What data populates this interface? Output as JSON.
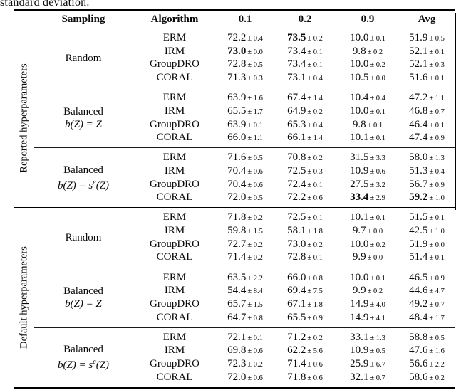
{
  "page": {
    "caption_fragment": "standard deviation.",
    "text_color": "#0a0a0a",
    "rule_color": "#000000"
  },
  "table": {
    "columns": [
      "Sampling",
      "Algorithm",
      "0.1",
      "0.2",
      "0.9",
      "Avg"
    ],
    "sections": [
      {
        "label": "Reported hyperparameters",
        "blocks": [
          {
            "sampling": {
              "line1": "Random",
              "line2": null
            },
            "rows": [
              {
                "algorithm": "ERM",
                "values": [
                  {
                    "v": "72.2",
                    "se": "0.4",
                    "bold": false
                  },
                  {
                    "v": "73.5",
                    "se": "0.2",
                    "bold": true
                  },
                  {
                    "v": "10.0",
                    "se": "0.1",
                    "bold": false
                  },
                  {
                    "v": "51.9",
                    "se": "0.5",
                    "bold": false
                  }
                ]
              },
              {
                "algorithm": "IRM",
                "values": [
                  {
                    "v": "73.0",
                    "se": "0.0",
                    "bold": true
                  },
                  {
                    "v": "73.4",
                    "se": "0.1",
                    "bold": false
                  },
                  {
                    "v": "9.8",
                    "se": "0.2",
                    "bold": false
                  },
                  {
                    "v": "52.1",
                    "se": "0.1",
                    "bold": false
                  }
                ]
              },
              {
                "algorithm": "GroupDRO",
                "values": [
                  {
                    "v": "72.8",
                    "se": "0.5",
                    "bold": false
                  },
                  {
                    "v": "73.4",
                    "se": "0.1",
                    "bold": false
                  },
                  {
                    "v": "10.0",
                    "se": "0.2",
                    "bold": false
                  },
                  {
                    "v": "52.1",
                    "se": "0.3",
                    "bold": false
                  }
                ]
              },
              {
                "algorithm": "CORAL",
                "values": [
                  {
                    "v": "71.3",
                    "se": "0.3",
                    "bold": false
                  },
                  {
                    "v": "73.1",
                    "se": "0.4",
                    "bold": false
                  },
                  {
                    "v": "10.5",
                    "se": "0.0",
                    "bold": false
                  },
                  {
                    "v": "51.6",
                    "se": "0.1",
                    "bold": false
                  }
                ]
              }
            ]
          },
          {
            "sampling": {
              "line1": "Balanced",
              "line2": {
                "pre": "b(Z) = Z",
                "sup": "",
                "post": ""
              }
            },
            "rows": [
              {
                "algorithm": "ERM",
                "values": [
                  {
                    "v": "63.9",
                    "se": "1.6",
                    "bold": false
                  },
                  {
                    "v": "67.4",
                    "se": "1.4",
                    "bold": false
                  },
                  {
                    "v": "10.4",
                    "se": "0.4",
                    "bold": false
                  },
                  {
                    "v": "47.2",
                    "se": "1.1",
                    "bold": false
                  }
                ]
              },
              {
                "algorithm": "IRM",
                "values": [
                  {
                    "v": "65.5",
                    "se": "1.7",
                    "bold": false
                  },
                  {
                    "v": "64.9",
                    "se": "0.2",
                    "bold": false
                  },
                  {
                    "v": "10.0",
                    "se": "0.1",
                    "bold": false
                  },
                  {
                    "v": "46.8",
                    "se": "0.7",
                    "bold": false
                  }
                ]
              },
              {
                "algorithm": "GroupDRO",
                "values": [
                  {
                    "v": "63.9",
                    "se": "0.1",
                    "bold": false
                  },
                  {
                    "v": "65.3",
                    "se": "0.4",
                    "bold": false
                  },
                  {
                    "v": "9.8",
                    "se": "0.1",
                    "bold": false
                  },
                  {
                    "v": "46.4",
                    "se": "0.1",
                    "bold": false
                  }
                ]
              },
              {
                "algorithm": "CORAL",
                "values": [
                  {
                    "v": "66.0",
                    "se": "1.1",
                    "bold": false
                  },
                  {
                    "v": "66.1",
                    "se": "1.4",
                    "bold": false
                  },
                  {
                    "v": "10.1",
                    "se": "0.1",
                    "bold": false
                  },
                  {
                    "v": "47.4",
                    "se": "0.9",
                    "bold": false
                  }
                ]
              }
            ]
          },
          {
            "sampling": {
              "line1": "Balanced",
              "line2": {
                "pre": "b(Z) = s",
                "sup": "e",
                "post": "(Z)"
              }
            },
            "rows": [
              {
                "algorithm": "ERM",
                "values": [
                  {
                    "v": "71.6",
                    "se": "0.5",
                    "bold": false
                  },
                  {
                    "v": "70.8",
                    "se": "0.2",
                    "bold": false
                  },
                  {
                    "v": "31.5",
                    "se": "3.3",
                    "bold": false
                  },
                  {
                    "v": "58.0",
                    "se": "1.3",
                    "bold": false
                  }
                ]
              },
              {
                "algorithm": "IRM",
                "values": [
                  {
                    "v": "70.4",
                    "se": "0.6",
                    "bold": false
                  },
                  {
                    "v": "72.5",
                    "se": "0.3",
                    "bold": false
                  },
                  {
                    "v": "10.9",
                    "se": "0.6",
                    "bold": false
                  },
                  {
                    "v": "51.3",
                    "se": "0.4",
                    "bold": false
                  }
                ]
              },
              {
                "algorithm": "GroupDRO",
                "values": [
                  {
                    "v": "70.4",
                    "se": "0.6",
                    "bold": false
                  },
                  {
                    "v": "72.4",
                    "se": "0.1",
                    "bold": false
                  },
                  {
                    "v": "27.5",
                    "se": "3.2",
                    "bold": false
                  },
                  {
                    "v": "56.7",
                    "se": "0.9",
                    "bold": false
                  }
                ]
              },
              {
                "algorithm": "CORAL",
                "values": [
                  {
                    "v": "72.0",
                    "se": "0.5",
                    "bold": false
                  },
                  {
                    "v": "72.2",
                    "se": "0.6",
                    "bold": false
                  },
                  {
                    "v": "33.4",
                    "se": "2.9",
                    "bold": true
                  },
                  {
                    "v": "59.2",
                    "se": "1.0",
                    "bold": true
                  }
                ]
              }
            ]
          }
        ]
      },
      {
        "label": "Default hyperparameters",
        "blocks": [
          {
            "sampling": {
              "line1": "Random",
              "line2": null
            },
            "rows": [
              {
                "algorithm": "ERM",
                "values": [
                  {
                    "v": "71.8",
                    "se": "0.2",
                    "bold": false
                  },
                  {
                    "v": "72.5",
                    "se": "0.1",
                    "bold": false
                  },
                  {
                    "v": "10.1",
                    "se": "0.1",
                    "bold": false
                  },
                  {
                    "v": "51.5",
                    "se": "0.1",
                    "bold": false
                  }
                ]
              },
              {
                "algorithm": "IRM",
                "values": [
                  {
                    "v": "59.8",
                    "se": "1.5",
                    "bold": false
                  },
                  {
                    "v": "58.1",
                    "se": "1.8",
                    "bold": false
                  },
                  {
                    "v": "9.7",
                    "se": "0.0",
                    "bold": false
                  },
                  {
                    "v": "42.5",
                    "se": "1.0",
                    "bold": false
                  }
                ]
              },
              {
                "algorithm": "GroupDRO",
                "values": [
                  {
                    "v": "72.7",
                    "se": "0.2",
                    "bold": false
                  },
                  {
                    "v": "73.0",
                    "se": "0.2",
                    "bold": false
                  },
                  {
                    "v": "10.0",
                    "se": "0.2",
                    "bold": false
                  },
                  {
                    "v": "51.9",
                    "se": "0.0",
                    "bold": false
                  }
                ]
              },
              {
                "algorithm": "CORAL",
                "values": [
                  {
                    "v": "71.4",
                    "se": "0.2",
                    "bold": false
                  },
                  {
                    "v": "72.8",
                    "se": "0.1",
                    "bold": false
                  },
                  {
                    "v": "9.9",
                    "se": "0.0",
                    "bold": false
                  },
                  {
                    "v": "51.4",
                    "se": "0.1",
                    "bold": false
                  }
                ]
              }
            ]
          },
          {
            "sampling": {
              "line1": "Balanced",
              "line2": {
                "pre": "b(Z) = Z",
                "sup": "",
                "post": ""
              }
            },
            "rows": [
              {
                "algorithm": "ERM",
                "values": [
                  {
                    "v": "63.5",
                    "se": "2.2",
                    "bold": false
                  },
                  {
                    "v": "66.0",
                    "se": "0.8",
                    "bold": false
                  },
                  {
                    "v": "10.0",
                    "se": "0.1",
                    "bold": false
                  },
                  {
                    "v": "46.5",
                    "se": "0.9",
                    "bold": false
                  }
                ]
              },
              {
                "algorithm": "IRM",
                "values": [
                  {
                    "v": "54.4",
                    "se": "8.4",
                    "bold": false
                  },
                  {
                    "v": "69.4",
                    "se": "7.5",
                    "bold": false
                  },
                  {
                    "v": "9.9",
                    "se": "0.2",
                    "bold": false
                  },
                  {
                    "v": "44.6",
                    "se": "4.7",
                    "bold": false
                  }
                ]
              },
              {
                "algorithm": "GroupDRO",
                "values": [
                  {
                    "v": "65.7",
                    "se": "1.5",
                    "bold": false
                  },
                  {
                    "v": "67.1",
                    "se": "1.8",
                    "bold": false
                  },
                  {
                    "v": "14.9",
                    "se": "4.0",
                    "bold": false
                  },
                  {
                    "v": "49.2",
                    "se": "0.7",
                    "bold": false
                  }
                ]
              },
              {
                "algorithm": "CORAL",
                "values": [
                  {
                    "v": "64.7",
                    "se": "0.8",
                    "bold": false
                  },
                  {
                    "v": "65.5",
                    "se": "0.9",
                    "bold": false
                  },
                  {
                    "v": "14.9",
                    "se": "4.1",
                    "bold": false
                  },
                  {
                    "v": "48.4",
                    "se": "1.7",
                    "bold": false
                  }
                ]
              }
            ]
          },
          {
            "sampling": {
              "line1": "Balanced",
              "line2": {
                "pre": "b(Z) = s",
                "sup": "e",
                "post": "(Z)"
              }
            },
            "rows": [
              {
                "algorithm": "ERM",
                "values": [
                  {
                    "v": "72.1",
                    "se": "0.1",
                    "bold": false
                  },
                  {
                    "v": "71.2",
                    "se": "0.2",
                    "bold": false
                  },
                  {
                    "v": "33.1",
                    "se": "1.3",
                    "bold": false
                  },
                  {
                    "v": "58.8",
                    "se": "0.5",
                    "bold": false
                  }
                ]
              },
              {
                "algorithm": "IRM",
                "values": [
                  {
                    "v": "69.8",
                    "se": "0.6",
                    "bold": false
                  },
                  {
                    "v": "62.2",
                    "se": "5.6",
                    "bold": false
                  },
                  {
                    "v": "10.9",
                    "se": "0.5",
                    "bold": false
                  },
                  {
                    "v": "47.6",
                    "se": "1.6",
                    "bold": false
                  }
                ]
              },
              {
                "algorithm": "GroupDRO",
                "values": [
                  {
                    "v": "72.3",
                    "se": "0.2",
                    "bold": false
                  },
                  {
                    "v": "71.4",
                    "se": "0.6",
                    "bold": false
                  },
                  {
                    "v": "25.9",
                    "se": "6.7",
                    "bold": false
                  },
                  {
                    "v": "56.6",
                    "se": "2.2",
                    "bold": false
                  }
                ]
              },
              {
                "algorithm": "CORAL",
                "values": [
                  {
                    "v": "72.0",
                    "se": "0.6",
                    "bold": false
                  },
                  {
                    "v": "71.8",
                    "se": "0.6",
                    "bold": false
                  },
                  {
                    "v": "32.1",
                    "se": "0.7",
                    "bold": false
                  },
                  {
                    "v": "58.6",
                    "se": "0.2",
                    "bold": false
                  }
                ]
              }
            ]
          }
        ]
      }
    ]
  }
}
